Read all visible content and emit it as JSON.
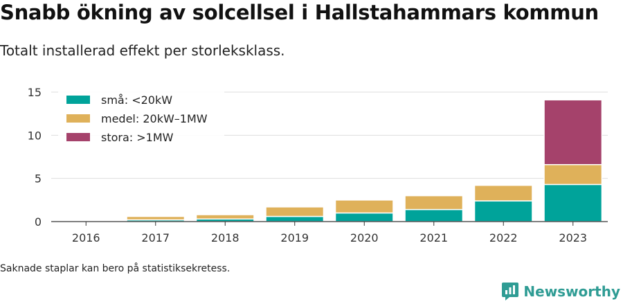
{
  "title": "Snabb ökning av solcellsel i Hallstahammars kommun",
  "subtitle": "Totalt installerad effekt per storleksklass.",
  "note": "Saknade staplar kan bero på statistiksekretess.",
  "brand": {
    "name": "Newsworthy",
    "icon": "newsworthy-logo-icon"
  },
  "chart_data": {
    "type": "bar",
    "stacked": true,
    "categories": [
      "2016",
      "2017",
      "2018",
      "2019",
      "2020",
      "2021",
      "2022",
      "2023"
    ],
    "series": [
      {
        "name": "små: <20kW",
        "color": "#00a39a",
        "values": [
          0.05,
          0.2,
          0.3,
          0.6,
          1.0,
          1.4,
          2.4,
          4.3
        ]
      },
      {
        "name": "medel: 20kW–1MW",
        "color": "#dfb15a",
        "values": [
          0.0,
          0.4,
          0.5,
          1.1,
          1.5,
          1.6,
          1.8,
          2.3
        ]
      },
      {
        "name": "stora: >1MW",
        "color": "#a5426b",
        "values": [
          0.0,
          0.0,
          0.0,
          0.0,
          0.0,
          0.0,
          0.0,
          7.5
        ]
      }
    ],
    "ylim": [
      0,
      15
    ],
    "yticks": [
      0,
      5,
      10,
      15
    ],
    "grid": true,
    "legend": "top-left"
  }
}
